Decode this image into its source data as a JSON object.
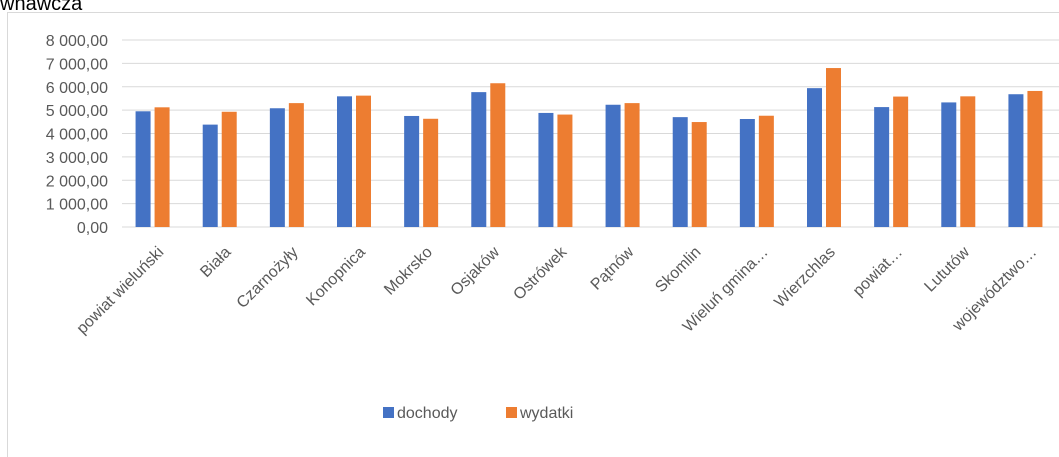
{
  "header": {
    "clipped_text": "wnawcza"
  },
  "chart_data": {
    "type": "bar",
    "title": "",
    "xlabel": "",
    "ylabel": "",
    "categories": [
      "powiat wieluński",
      "Biała",
      "Czarnożyły",
      "Konopnica",
      "Mokrsko",
      "Osjaków",
      "Ostrówek",
      "Pątnów",
      "Skomlin",
      "Wieluń gmina…",
      "Wierzchlas",
      "powiat…",
      "Lututów",
      "województwo…"
    ],
    "series": [
      {
        "name": "dochody",
        "color": "#4472c4",
        "values": [
          4950,
          4380,
          5080,
          5590,
          4750,
          5770,
          4880,
          5230,
          4700,
          4620,
          5940,
          5130,
          5330,
          5680
        ]
      },
      {
        "name": "wydatki",
        "color": "#ed7d31",
        "values": [
          5120,
          4930,
          5300,
          5620,
          4630,
          6150,
          4810,
          5300,
          4490,
          4760,
          6800,
          5580,
          5590,
          5820
        ]
      }
    ],
    "ylim": [
      0,
      8000
    ],
    "yticks": [
      0,
      1000,
      2000,
      3000,
      4000,
      5000,
      6000,
      7000,
      8000
    ],
    "ytick_labels": [
      "0,00",
      "1 000,00",
      "2 000,00",
      "3 000,00",
      "4 000,00",
      "5 000,00",
      "6 000,00",
      "7 000,00",
      "8 000,00"
    ],
    "grid": true,
    "legend": "bottom"
  }
}
